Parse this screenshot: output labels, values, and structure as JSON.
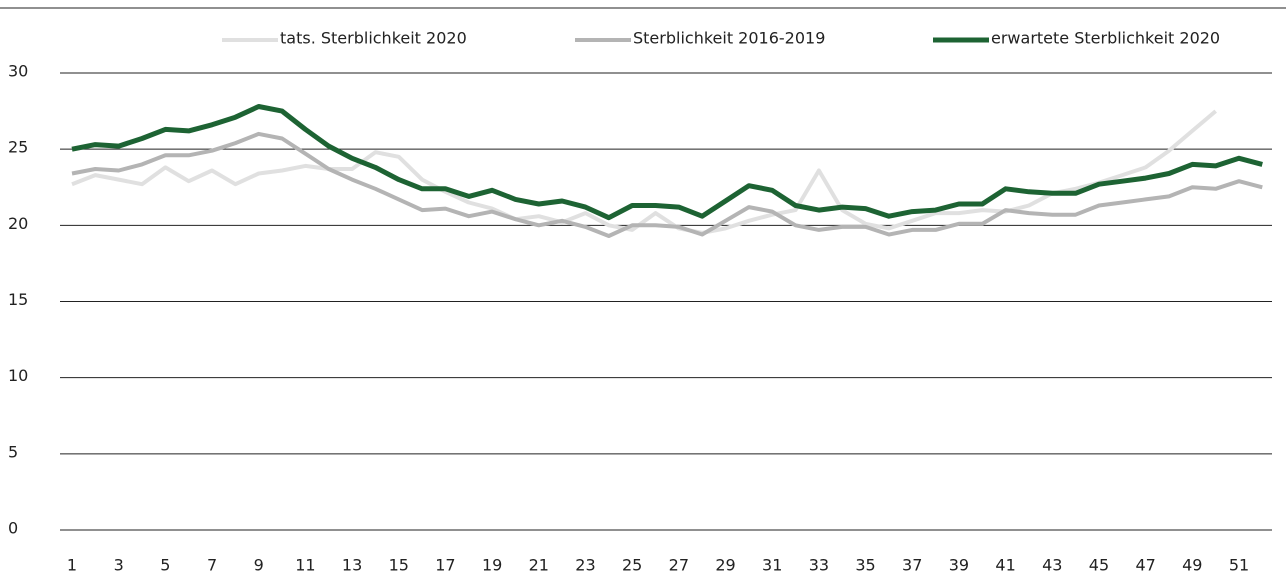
{
  "chart_data": {
    "type": "line",
    "categories": [
      1,
      null,
      3,
      null,
      5,
      null,
      7,
      null,
      9,
      null,
      11,
      null,
      13,
      null,
      15,
      null,
      17,
      null,
      19,
      null,
      21,
      null,
      23,
      null,
      25,
      null,
      27,
      null,
      29,
      null,
      31,
      null,
      33,
      null,
      35,
      null,
      37,
      null,
      39,
      null,
      41,
      null,
      43,
      null,
      45,
      null,
      47,
      null,
      49,
      null,
      51,
      null
    ],
    "series": [
      {
        "name": "tats. Sterblichkeit 2020",
        "color": "#e0e0e0",
        "width": 4,
        "values": [
          22.7,
          23.3,
          23.0,
          22.7,
          23.8,
          22.9,
          23.6,
          22.7,
          23.4,
          23.6,
          23.9,
          23.7,
          23.7,
          24.8,
          24.5,
          23.0,
          22.2,
          21.5,
          21.1,
          20.4,
          20.6,
          20.2,
          20.8,
          20.0,
          19.7,
          20.8,
          19.8,
          19.5,
          19.8,
          20.3,
          20.7,
          21.0,
          23.6,
          21.0,
          20.1,
          19.8,
          20.3,
          20.8,
          20.8,
          21.0,
          20.9,
          21.3,
          22.1,
          22.4,
          22.8,
          23.3,
          23.8,
          24.9,
          26.2,
          27.5,
          null,
          null
        ]
      },
      {
        "name": "Sterblichkeit 2016-2019",
        "color": "#b4b4b4",
        "width": 4,
        "values": [
          23.4,
          23.7,
          23.6,
          24.0,
          24.6,
          24.6,
          24.9,
          25.4,
          26.0,
          25.7,
          24.7,
          23.7,
          23.0,
          22.4,
          21.7,
          21.0,
          21.1,
          20.6,
          20.9,
          20.4,
          20.0,
          20.3,
          19.9,
          19.3,
          20.0,
          20.0,
          19.9,
          19.4,
          20.3,
          21.2,
          20.9,
          20.0,
          19.7,
          19.9,
          19.9,
          19.4,
          19.7,
          19.7,
          20.1,
          20.1,
          21.0,
          20.8,
          20.7,
          20.7,
          21.3,
          21.5,
          21.7,
          21.9,
          22.5,
          22.4,
          22.9,
          22.5
        ]
      },
      {
        "name": "erwartete Sterblichkeit 2020",
        "color": "#1d6333",
        "width": 5,
        "values": [
          25.0,
          25.3,
          25.2,
          25.7,
          26.3,
          26.2,
          26.6,
          27.1,
          27.8,
          27.5,
          26.3,
          25.2,
          24.4,
          23.8,
          23.0,
          22.4,
          22.4,
          21.9,
          22.3,
          21.7,
          21.4,
          21.6,
          21.2,
          20.5,
          21.3,
          21.3,
          21.2,
          20.6,
          21.6,
          22.6,
          22.3,
          21.3,
          21.0,
          21.2,
          21.1,
          20.6,
          20.9,
          21.0,
          21.4,
          21.4,
          22.4,
          22.2,
          22.1,
          22.1,
          22.7,
          22.9,
          23.1,
          23.4,
          24.0,
          23.9,
          24.4,
          24.0
        ]
      }
    ],
    "ylim": [
      0,
      30
    ],
    "yticks": [
      0,
      5,
      10,
      15,
      20,
      25,
      30
    ],
    "grid": true,
    "legend": "top"
  }
}
